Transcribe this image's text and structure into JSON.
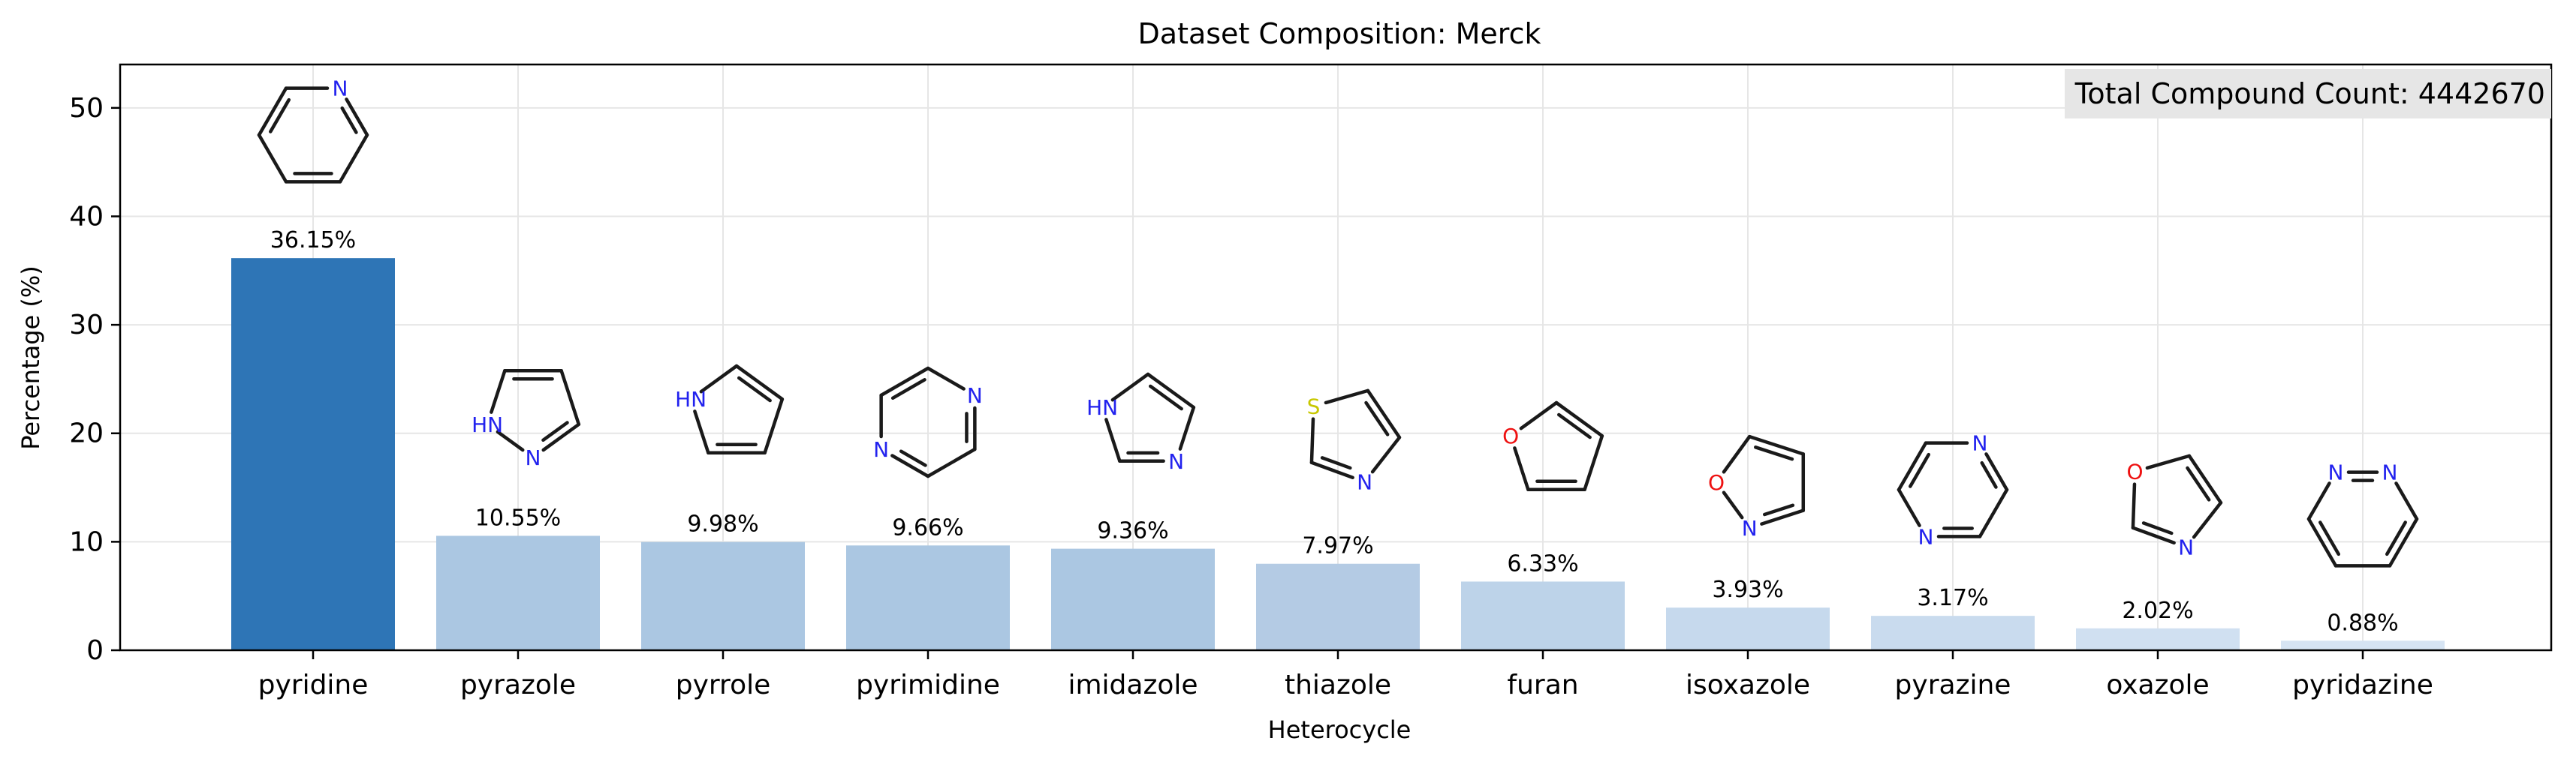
{
  "chart_data": {
    "type": "bar",
    "title": "Dataset Composition: Merck",
    "xlabel": "Heterocycle",
    "ylabel": "Percentage (%)",
    "ylim": [
      0,
      54
    ],
    "yticks": [
      0,
      10,
      20,
      30,
      40,
      50
    ],
    "grid": true,
    "categories": [
      "pyridine",
      "pyrazole",
      "pyrrole",
      "pyrimidine",
      "imidazole",
      "thiazole",
      "furan",
      "isoxazole",
      "pyrazine",
      "oxazole",
      "pyridazine"
    ],
    "values": [
      36.15,
      10.55,
      9.98,
      9.66,
      9.36,
      7.97,
      6.33,
      3.93,
      3.17,
      2.02,
      0.88
    ],
    "value_labels": [
      "36.15%",
      "10.55%",
      "9.98%",
      "9.66%",
      "9.36%",
      "7.97%",
      "6.33%",
      "3.93%",
      "3.17%",
      "2.02%",
      "0.88%"
    ],
    "total_label": "Total Compound Count: 4442670",
    "total_placement": "top-right",
    "colors": {
      "highlight": "#2e75b6",
      "bars": [
        "#2e75b6",
        "#abc7e2",
        "#abc7e2",
        "#abc7e2",
        "#abc7e2",
        "#b4cbe4",
        "#bdd3e9",
        "#c6d9ed",
        "#c9dbee",
        "#d0e0f1",
        "#d6e4f3"
      ],
      "nitrogen": "#2222ee",
      "oxygen": "#ee1111",
      "sulfur": "#c8c800",
      "box_fill": "#e6e6e6"
    },
    "structure_icons": [
      "pyridine-structure-icon",
      "pyrazole-structure-icon",
      "pyrrole-structure-icon",
      "pyrimidine-structure-icon",
      "imidazole-structure-icon",
      "thiazole-structure-icon",
      "furan-structure-icon",
      "isoxazole-structure-icon",
      "pyrazine-structure-icon",
      "oxazole-structure-icon",
      "pyridazine-structure-icon"
    ],
    "atom_labels": {
      "pyridine": [
        "N"
      ],
      "pyrazole": [
        "HN",
        "N"
      ],
      "pyrrole": [
        "HN"
      ],
      "pyrimidine": [
        "N",
        "N"
      ],
      "imidazole": [
        "HN",
        "N"
      ],
      "thiazole": [
        "S",
        "N"
      ],
      "furan": [
        "O"
      ],
      "isoxazole": [
        "O",
        "N"
      ],
      "pyrazine": [
        "N",
        "N"
      ],
      "oxazole": [
        "O",
        "N"
      ],
      "pyridazine": [
        "N",
        "N"
      ]
    }
  }
}
